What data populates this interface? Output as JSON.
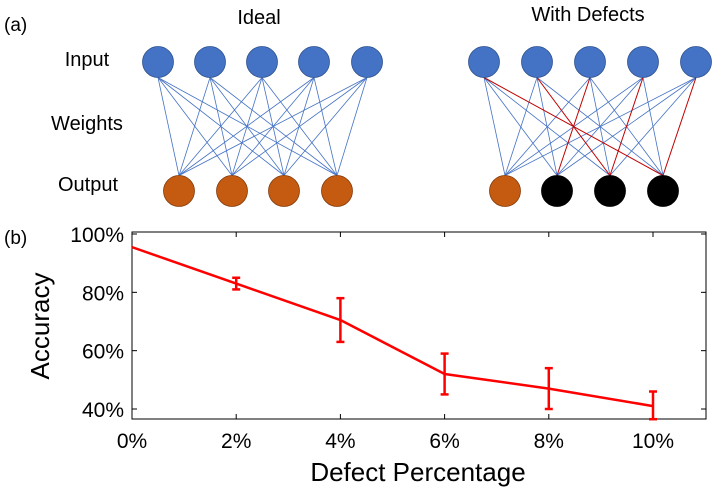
{
  "panel_a": {
    "label": "(a)",
    "ideal_title": "Ideal",
    "defects_title": "With Defects",
    "row_labels": {
      "input": "Input",
      "weights": "Weights",
      "output": "Output"
    },
    "input_count": 5,
    "output_count": 4,
    "defects_output_states": [
      "normal",
      "defective",
      "defective",
      "defective"
    ],
    "defects_red_edges": [
      [
        0,
        3
      ],
      [
        1,
        2
      ],
      [
        2,
        1
      ],
      [
        3,
        2
      ],
      [
        4,
        3
      ]
    ],
    "colors": {
      "input_node": "#4472C4",
      "output_node": "#C55A11",
      "defective_node": "#000000",
      "edge": "#4472C4",
      "defect_edge": "#C00000"
    }
  },
  "chart_data": {
    "type": "line",
    "panel_label": "(b)",
    "title": "",
    "xlabel": "Defect Percentage",
    "ylabel": "Accuracy",
    "x_tick_labels": [
      "0%",
      "2%",
      "4%",
      "6%",
      "8%",
      "10%"
    ],
    "y_tick_labels": [
      "40%",
      "60%",
      "80%",
      "100%"
    ],
    "y_ticks": [
      40,
      60,
      80,
      100
    ],
    "xlim": [
      0,
      10
    ],
    "ylim": [
      37,
      100
    ],
    "grid": false,
    "series": [
      {
        "name": "Accuracy",
        "color": "#FF0000",
        "x": [
          0,
          2,
          4,
          6,
          8,
          10
        ],
        "y": [
          95.5,
          83,
          70.5,
          52,
          47,
          41
        ],
        "err_low": [
          null,
          81,
          63,
          45,
          40,
          36.5
        ],
        "err_high": [
          null,
          85,
          78,
          59,
          54,
          46
        ]
      }
    ]
  }
}
